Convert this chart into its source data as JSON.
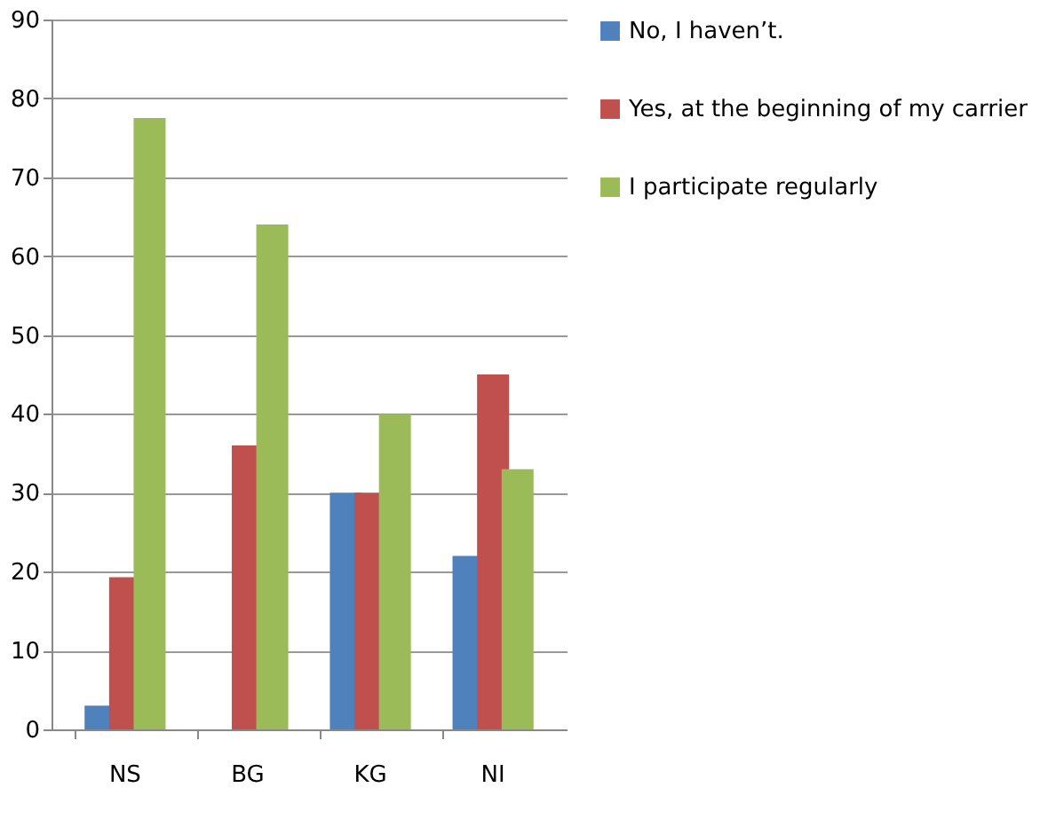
{
  "chart_data": {
    "type": "bar",
    "categories": [
      "NS",
      "BG",
      "KG",
      "NI"
    ],
    "series": [
      {
        "name": "No,  I haven’t.",
        "color": "#4f81bd",
        "values": [
          3,
          0,
          30,
          22
        ]
      },
      {
        "name": "Yes, at the beginning of my carrier",
        "color": "#c0504d",
        "values": [
          19.3,
          36,
          30,
          45
        ]
      },
      {
        "name": "I participate regularly",
        "color": "#9bbb59",
        "values": [
          77.5,
          64,
          40,
          33
        ]
      }
    ],
    "ylim": [
      0,
      90
    ],
    "yticks": [
      0,
      10,
      20,
      30,
      40,
      50,
      60,
      70,
      80,
      90
    ],
    "grid": "y",
    "legend": "right"
  }
}
